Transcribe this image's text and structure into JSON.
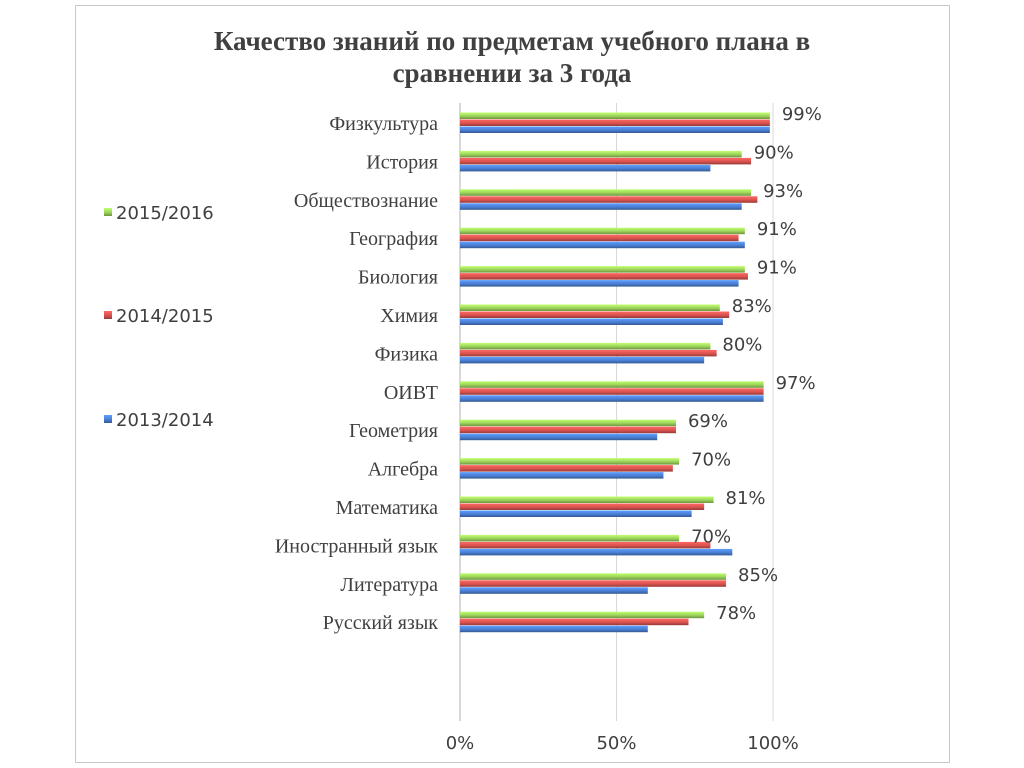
{
  "chart_data": {
    "type": "bar",
    "orientation": "horizontal",
    "title": "Качество знаний по предметам учебного плана в сравнении за 3 года",
    "title_lines": [
      "Качество знаний по предметам учебного плана в",
      "сравнении за 3 года"
    ],
    "categories": [
      "Физкультура",
      "История",
      "Обществознание",
      "География",
      "Биология",
      "Химия",
      "Физика",
      "ОИВТ",
      "Геометрия",
      "Алгебра",
      "Математика",
      "Иностранный язык",
      "Литература",
      "Русский язык"
    ],
    "series": [
      {
        "name": "2015/2016",
        "color": "#9bd35a",
        "values": [
          99,
          90,
          93,
          91,
          91,
          83,
          80,
          97,
          69,
          70,
          81,
          70,
          85,
          78
        ]
      },
      {
        "name": "2014/2015",
        "color": "#d9534f",
        "values": [
          99,
          93,
          95,
          89,
          92,
          86,
          82,
          97,
          69,
          68,
          78,
          80,
          85,
          73
        ]
      },
      {
        "name": "2013/2014",
        "color": "#4a7fd4",
        "values": [
          99,
          80,
          90,
          91,
          89,
          84,
          78,
          97,
          63,
          65,
          74,
          87,
          60,
          60
        ]
      }
    ],
    "data_labels": [
      "99%",
      "90%",
      "93%",
      "91%",
      "91%",
      "83%",
      "80%",
      "97%",
      "69%",
      "70%",
      "81%",
      "70%",
      "85%",
      "78%"
    ],
    "x_ticks": [
      "0%",
      "50%",
      "100%"
    ],
    "xlim": [
      0,
      100
    ],
    "grid": true,
    "legend_position": "left"
  }
}
